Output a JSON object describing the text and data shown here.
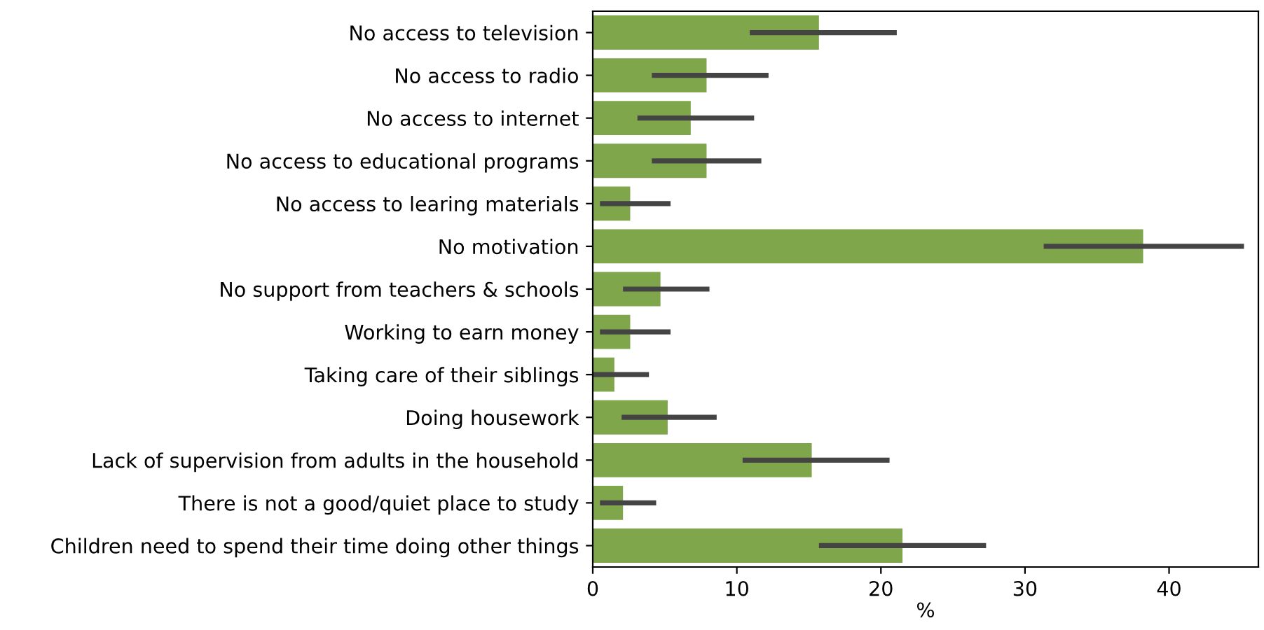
{
  "chart_data": {
    "type": "bar",
    "orientation": "horizontal",
    "xlabel": "%",
    "categories": [
      "No access to television",
      "No access to radio",
      "No access to internet",
      "No access to educational programs",
      "No access to learing materials",
      "No motivation",
      "No support from teachers & schools",
      "Working to earn money",
      "Taking care of their siblings",
      "Doing housework",
      "Lack of supervision from adults in the household",
      "There is not a good/quiet place to study",
      "Children need to spend their time doing other things"
    ],
    "values": [
      15.7,
      7.9,
      6.8,
      7.9,
      2.6,
      38.2,
      4.7,
      2.6,
      1.5,
      5.2,
      15.2,
      2.1,
      21.5
    ],
    "errors": [
      [
        10.9,
        21.1
      ],
      [
        4.1,
        12.2
      ],
      [
        3.1,
        11.2
      ],
      [
        4.1,
        11.7
      ],
      [
        0.5,
        5.4
      ],
      [
        31.3,
        45.2
      ],
      [
        2.1,
        8.1
      ],
      [
        0.5,
        5.4
      ],
      [
        0,
        3.9
      ],
      [
        2.0,
        8.6
      ],
      [
        10.4,
        20.6
      ],
      [
        0.5,
        4.4
      ],
      [
        15.7,
        27.3
      ]
    ],
    "color": "#7fa64a",
    "xlim": [
      0,
      46.2
    ],
    "xticks": [
      0,
      10,
      20,
      30,
      40
    ],
    "grid": false,
    "legend": false
  }
}
